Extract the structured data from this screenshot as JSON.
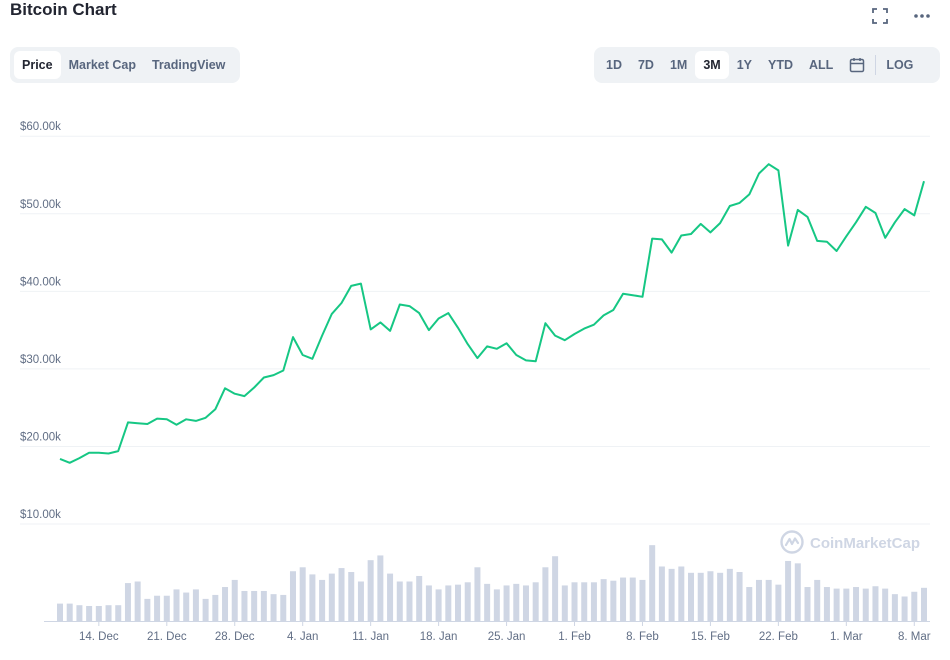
{
  "header": {
    "title": "Bitcoin Chart",
    "fullscreen_icon": "fullscreen-icon",
    "more_icon": "more-dots-icon"
  },
  "view_tabs": [
    {
      "label": "Price",
      "active": true
    },
    {
      "label": "Market Cap",
      "active": false
    },
    {
      "label": "TradingView",
      "active": false
    }
  ],
  "range_tabs": [
    {
      "label": "1D",
      "active": false
    },
    {
      "label": "7D",
      "active": false
    },
    {
      "label": "1M",
      "active": false
    },
    {
      "label": "3M",
      "active": true
    },
    {
      "label": "1Y",
      "active": false
    },
    {
      "label": "YTD",
      "active": false
    },
    {
      "label": "ALL",
      "active": false
    }
  ],
  "calendar_icon": "calendar-icon",
  "log_label": "LOG",
  "watermark": {
    "text": "CoinMarketCap",
    "icon": "coinmarketcap-logo-icon"
  },
  "colors": {
    "line": "#16c784",
    "volume": "#cfd6e4",
    "accent_bg": "#eff2f5"
  },
  "chart_data": {
    "type": "line",
    "title": "Bitcoin Chart",
    "xlabel": "",
    "ylabel": "",
    "ylim": [
      0,
      62000
    ],
    "y_ticks": [
      "$10.00k",
      "$20.00k",
      "$30.00k",
      "$40.00k",
      "$50.00k",
      "$60.00k"
    ],
    "y_tick_values": [
      10000,
      20000,
      30000,
      40000,
      50000,
      60000
    ],
    "x_ticks": [
      "14. Dec",
      "21. Dec",
      "28. Dec",
      "4. Jan",
      "11. Jan",
      "18. Jan",
      "25. Jan",
      "1. Feb",
      "8. Feb",
      "15. Feb",
      "22. Feb",
      "1. Mar",
      "8. Mar"
    ],
    "x_tick_days": [
      4,
      11,
      18,
      25,
      32,
      39,
      46,
      53,
      60,
      67,
      74,
      81,
      88
    ],
    "x_start": "10. Dec",
    "grid": true,
    "legend": "none",
    "series": [
      {
        "values": [
          18400,
          17900,
          18500,
          19200,
          19200,
          19100,
          19400,
          23100,
          23000,
          22900,
          23600,
          23500,
          22800,
          23500,
          23300,
          23700,
          24800,
          27500,
          26800,
          26500,
          27600,
          28900,
          29200,
          29800,
          34100,
          31800,
          31300,
          34300,
          37100,
          38500,
          40700,
          41000,
          35100,
          36000,
          34900,
          38300,
          38100,
          37200,
          35000,
          36500,
          37200,
          35300,
          33200,
          31400,
          32900,
          32600,
          33300,
          31800,
          31100,
          31000,
          35900,
          34300,
          33700,
          34500,
          35200,
          35700,
          36900,
          37600,
          39700,
          39500,
          39300,
          46800,
          46700,
          45000,
          47200,
          47400,
          48700,
          47600,
          48800,
          51000,
          51400,
          52500,
          55200,
          56400,
          55600,
          45900,
          50500,
          49600,
          46500,
          46400,
          45200,
          47100,
          48900,
          50900,
          50100,
          46900,
          48900,
          50600,
          49800,
          54200
        ]
      }
    ],
    "volume": {
      "values": [
        2.2,
        2.2,
        2.0,
        1.9,
        1.9,
        2.0,
        2.0,
        4.8,
        5.0,
        2.8,
        3.2,
        3.2,
        4.0,
        3.6,
        4.0,
        2.8,
        3.3,
        4.3,
        5.2,
        3.8,
        3.8,
        3.8,
        3.4,
        3.3,
        6.3,
        6.8,
        5.9,
        5.2,
        6.0,
        6.7,
        6.2,
        5.0,
        7.7,
        8.3,
        6.0,
        5.0,
        5.0,
        5.7,
        4.5,
        4.0,
        4.5,
        4.6,
        4.9,
        6.8,
        4.7,
        4.0,
        4.5,
        4.7,
        4.5,
        4.9,
        6.8,
        8.2,
        4.5,
        4.9,
        4.9,
        4.9,
        5.3,
        5.1,
        5.5,
        5.5,
        5.2,
        9.6,
        6.9,
        6.6,
        6.9,
        6.1,
        6.1,
        6.3,
        6.1,
        6.6,
        6.2,
        4.3,
        5.2,
        5.2,
        4.6,
        7.6,
        7.3,
        4.3,
        5.2,
        4.3,
        4.1,
        4.1,
        4.3,
        4.1,
        4.4,
        4.1,
        3.4,
        3.1,
        3.7,
        4.2
      ]
    }
  }
}
